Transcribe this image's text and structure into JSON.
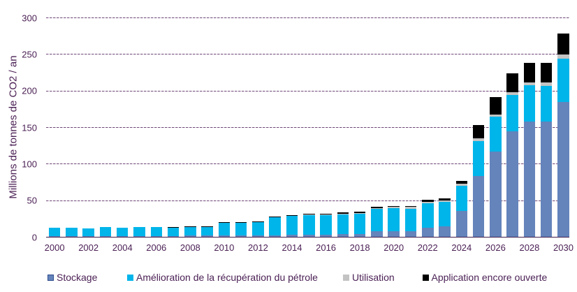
{
  "chart_data": {
    "type": "bar",
    "stacked": true,
    "title": "",
    "ylabel": "Millions de tonnes de CO2 / an",
    "xlabel": "",
    "ylim": [
      0,
      300
    ],
    "yticks": [
      0,
      50,
      100,
      150,
      200,
      250,
      300
    ],
    "grid": "horizontal-dashed",
    "legend_position": "bottom",
    "categories": [
      2000,
      2001,
      2002,
      2003,
      2004,
      2005,
      2006,
      2007,
      2008,
      2009,
      2010,
      2011,
      2012,
      2013,
      2014,
      2015,
      2016,
      2017,
      2018,
      2019,
      2020,
      2021,
      2022,
      2023,
      2024,
      2025,
      2026,
      2027,
      2028,
      2029,
      2030
    ],
    "xtick_labels": [
      "2000",
      "2002",
      "2004",
      "2006",
      "2008",
      "2010",
      "2012",
      "2014",
      "2016",
      "2018",
      "2020",
      "2022",
      "2024",
      "2026",
      "2028",
      "2030"
    ],
    "series": [
      {
        "name": "Stockage",
        "color": "#6484BB",
        "values": [
          1,
          1,
          1,
          1,
          1,
          1,
          1,
          1,
          2,
          2,
          2,
          2,
          2,
          2,
          2.5,
          3,
          3,
          3.5,
          4,
          7.5,
          7.5,
          8,
          12,
          14,
          35,
          83,
          117,
          144,
          158,
          158,
          184
        ]
      },
      {
        "name": "Amélioration de la récupération du pétrole",
        "color": "#00B5EA",
        "values": [
          11,
          11,
          10,
          12,
          11,
          12,
          12,
          11,
          11,
          11,
          17,
          17.5,
          18,
          24.5,
          26.5,
          27,
          27.5,
          27,
          27.5,
          30.5,
          31.5,
          30.5,
          33.5,
          33.5,
          35,
          48,
          47.5,
          50,
          49,
          48.5,
          59.5
        ]
      },
      {
        "name": "Utilisation",
        "color": "#C3C3C3",
        "values": [
          0,
          0,
          0,
          0,
          0,
          0,
          0,
          0,
          0,
          0,
          0,
          0,
          0,
          0,
          0,
          0.5,
          0.5,
          1.2,
          1.4,
          1.4,
          1.7,
          2.4,
          2.3,
          2.5,
          3,
          4,
          3,
          4,
          4,
          4.5,
          5.5
        ]
      },
      {
        "name": "Application encore ouverte",
        "color": "#000000",
        "values": [
          0,
          0,
          0,
          0,
          0,
          0,
          0,
          1,
          1,
          1,
          1,
          1,
          1.2,
          1,
          1,
          1,
          1,
          1.3,
          1.3,
          1.5,
          1.5,
          1.6,
          2.7,
          3,
          3,
          18,
          23.5,
          26,
          27,
          26.5,
          29
        ]
      }
    ]
  },
  "style": {
    "text_color": "#4B2155",
    "grid_color": "#6F4878",
    "axis_color": "#3F1E4A",
    "background": "#FFFFFF",
    "legend_marker_border": "#2E4D8E"
  }
}
